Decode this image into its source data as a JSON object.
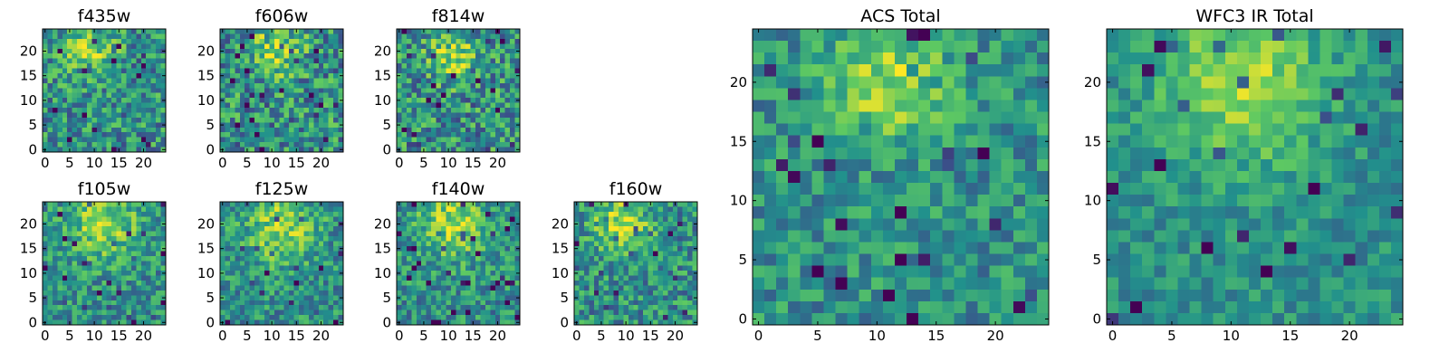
{
  "chart_data": [
    {
      "type": "heatmap",
      "title": "f435w",
      "grid_size": 25,
      "xlim": [
        0,
        24
      ],
      "ylim": [
        0,
        24
      ],
      "xticks": [
        0,
        5,
        10,
        15,
        20
      ],
      "yticks": [
        0,
        5,
        10,
        15,
        20
      ],
      "colormap": "viridis",
      "colormap_stops": [
        "#440154",
        "#3b528b",
        "#21918c",
        "#5ec962",
        "#fde725"
      ],
      "bright_region": {
        "cx": 9,
        "cy": 21,
        "r": 5
      },
      "seed": 11,
      "noise": 0.55
    },
    {
      "type": "heatmap",
      "title": "f606w",
      "grid_size": 25,
      "xlim": [
        0,
        24
      ],
      "ylim": [
        0,
        24
      ],
      "xticks": [
        0,
        5,
        10,
        15,
        20
      ],
      "yticks": [
        0,
        5,
        10,
        15,
        20
      ],
      "colormap": "viridis",
      "colormap_stops": [
        "#440154",
        "#3b528b",
        "#21918c",
        "#5ec962",
        "#fde725"
      ],
      "bright_region": {
        "cx": 11,
        "cy": 20,
        "r": 5
      },
      "seed": 23,
      "noise": 0.6
    },
    {
      "type": "heatmap",
      "title": "f814w",
      "grid_size": 25,
      "xlim": [
        0,
        24
      ],
      "ylim": [
        0,
        24
      ],
      "xticks": [
        0,
        5,
        10,
        15,
        20
      ],
      "yticks": [
        0,
        5,
        10,
        15,
        20
      ],
      "colormap": "viridis",
      "colormap_stops": [
        "#440154",
        "#3b528b",
        "#21918c",
        "#5ec962",
        "#fde725"
      ],
      "bright_region": {
        "cx": 11,
        "cy": 19,
        "r": 5
      },
      "seed": 37,
      "noise": 0.6
    },
    {
      "type": "heatmap",
      "title": "f105w",
      "grid_size": 25,
      "xlim": [
        0,
        24
      ],
      "ylim": [
        0,
        24
      ],
      "xticks": [
        0,
        5,
        10,
        15,
        20
      ],
      "yticks": [
        0,
        5,
        10,
        15,
        20
      ],
      "colormap": "viridis",
      "colormap_stops": [
        "#440154",
        "#3b528b",
        "#21918c",
        "#5ec962",
        "#fde725"
      ],
      "bright_region": {
        "cx": 12,
        "cy": 20,
        "r": 7
      },
      "seed": 41,
      "noise": 0.45
    },
    {
      "type": "heatmap",
      "title": "f125w",
      "grid_size": 25,
      "xlim": [
        0,
        24
      ],
      "ylim": [
        0,
        24
      ],
      "xticks": [
        0,
        5,
        10,
        15,
        20
      ],
      "yticks": [
        0,
        5,
        10,
        15,
        20
      ],
      "colormap": "viridis",
      "colormap_stops": [
        "#440154",
        "#3b528b",
        "#21918c",
        "#5ec962",
        "#fde725"
      ],
      "bright_region": {
        "cx": 12,
        "cy": 19,
        "r": 7
      },
      "seed": 53,
      "noise": 0.45
    },
    {
      "type": "heatmap",
      "title": "f140w",
      "grid_size": 25,
      "xlim": [
        0,
        24
      ],
      "ylim": [
        0,
        24
      ],
      "xticks": [
        0,
        5,
        10,
        15,
        20
      ],
      "yticks": [
        0,
        5,
        10,
        15,
        20
      ],
      "colormap": "viridis",
      "colormap_stops": [
        "#440154",
        "#3b528b",
        "#21918c",
        "#5ec962",
        "#fde725"
      ],
      "bright_region": {
        "cx": 11,
        "cy": 20,
        "r": 7
      },
      "seed": 67,
      "noise": 0.45
    },
    {
      "type": "heatmap",
      "title": "f160w",
      "grid_size": 25,
      "xlim": [
        0,
        24
      ],
      "ylim": [
        0,
        24
      ],
      "xticks": [
        0,
        5,
        10,
        15,
        20
      ],
      "yticks": [
        0,
        5,
        10,
        15,
        20
      ],
      "colormap": "viridis",
      "colormap_stops": [
        "#440154",
        "#3b528b",
        "#21918c",
        "#5ec962",
        "#fde725"
      ],
      "bright_region": {
        "cx": 9,
        "cy": 20,
        "r": 6
      },
      "seed": 79,
      "noise": 0.5
    },
    {
      "type": "heatmap",
      "title": "ACS Total",
      "grid_size": 25,
      "xlim": [
        0,
        24
      ],
      "ylim": [
        0,
        24
      ],
      "xticks": [
        0,
        5,
        10,
        15,
        20
      ],
      "yticks": [
        0,
        5,
        10,
        15,
        20
      ],
      "colormap": "viridis",
      "colormap_stops": [
        "#440154",
        "#3b528b",
        "#21918c",
        "#5ec962",
        "#fde725"
      ],
      "bright_region": {
        "cx": 11,
        "cy": 20,
        "r": 5
      },
      "seed": 97,
      "noise": 0.4
    },
    {
      "type": "heatmap",
      "title": "WFC3 IR Total",
      "grid_size": 25,
      "xlim": [
        0,
        24
      ],
      "ylim": [
        0,
        24
      ],
      "xticks": [
        0,
        5,
        10,
        15,
        20
      ],
      "yticks": [
        0,
        5,
        10,
        15,
        20
      ],
      "colormap": "viridis",
      "colormap_stops": [
        "#440154",
        "#3b528b",
        "#21918c",
        "#5ec962",
        "#fde725"
      ],
      "bright_region": {
        "cx": 11,
        "cy": 20,
        "r": 7
      },
      "seed": 131,
      "noise": 0.3
    }
  ]
}
